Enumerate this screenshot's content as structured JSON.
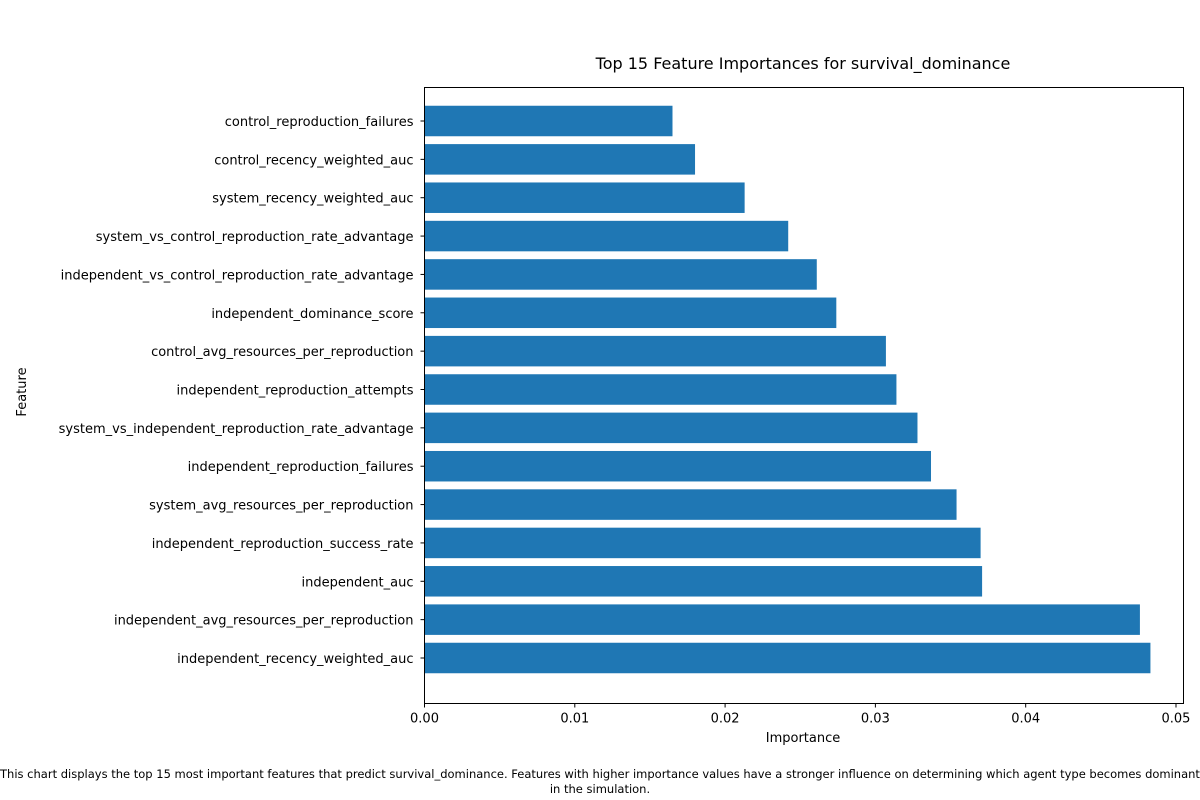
{
  "chart_data": {
    "type": "bar",
    "orientation": "horizontal",
    "title": "Top 15 Feature Importances for survival_dominance",
    "xlabel": "Importance",
    "ylabel": "Feature",
    "xlim": [
      0,
      0.0505
    ],
    "xticks": [
      0.0,
      0.01,
      0.02,
      0.03,
      0.04,
      0.05
    ],
    "xtick_labels": [
      "0.00",
      "0.01",
      "0.02",
      "0.03",
      "0.04",
      "0.05"
    ],
    "grid": false,
    "bar_color": "#1f77b4",
    "categories": [
      "independent_recency_weighted_auc",
      "independent_avg_resources_per_reproduction",
      "independent_auc",
      "independent_reproduction_success_rate",
      "system_avg_resources_per_reproduction",
      "independent_reproduction_failures",
      "system_vs_independent_reproduction_rate_advantage",
      "independent_reproduction_attempts",
      "control_avg_resources_per_reproduction",
      "independent_dominance_score",
      "independent_vs_control_reproduction_rate_advantage",
      "system_vs_control_reproduction_rate_advantage",
      "system_recency_weighted_auc",
      "control_recency_weighted_auc",
      "control_reproduction_failures"
    ],
    "values": [
      0.0483,
      0.0476,
      0.0371,
      0.037,
      0.0354,
      0.0337,
      0.0328,
      0.0314,
      0.0307,
      0.0274,
      0.0261,
      0.0242,
      0.0213,
      0.018,
      0.0165
    ]
  },
  "caption": "This chart displays the top 15 most important features that predict survival_dominance. Features with higher importance values have a stronger influence on determining which agent type becomes dominant in the simulation."
}
